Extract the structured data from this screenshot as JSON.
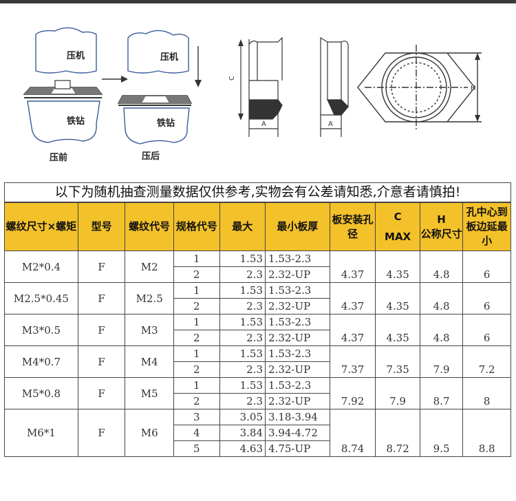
{
  "diagram": {
    "press_label_1": "压机",
    "drill_label_1": "铁钻",
    "before_label": "压前",
    "press_label_2": "压机",
    "drill_label_2": "铁钻",
    "after_label": "压后",
    "dim_c": "C",
    "dim_a_1": "A",
    "dim_a_2": "A",
    "dim_h": "H"
  },
  "note": "以下为随机抽查测量数据仅供参考,实物会有公差请知悉,介意者请慎拍!",
  "table": {
    "headers": {
      "thread_size": "螺纹尺寸×螺矩",
      "model": "型号",
      "thread_code": "螺纹代号",
      "spec_code": "规格代号",
      "max": "最大",
      "min_thickness": "最小板厚",
      "hole_dia": "板安装孔径",
      "c_label": "C",
      "c_sub": "MAX",
      "h_label": "H",
      "h_sub": "公称尺寸",
      "edge": "孔中心到板边延最小"
    },
    "groups": [
      {
        "size": "M2*0.4",
        "model": "F",
        "code": "M2",
        "hole": "4.37",
        "c": "4.35",
        "h": "4.8",
        "edge": "6",
        "rows": [
          {
            "spec": "1",
            "max": "1.53",
            "thick": "1.53-2.3"
          },
          {
            "spec": "2",
            "max": "2.3",
            "thick": "2.32-UP"
          }
        ]
      },
      {
        "size": "M2.5*0.45",
        "model": "F",
        "code": "M2.5",
        "hole": "4.37",
        "c": "4.35",
        "h": "4.8",
        "edge": "6",
        "rows": [
          {
            "spec": "1",
            "max": "1.53",
            "thick": "1.53-2.3"
          },
          {
            "spec": "2",
            "max": "2.3",
            "thick": "2.32-UP"
          }
        ]
      },
      {
        "size": "M3*0.5",
        "model": "F",
        "code": "M3",
        "hole": "4.37",
        "c": "4.35",
        "h": "4.8",
        "edge": "6",
        "rows": [
          {
            "spec": "1",
            "max": "1.53",
            "thick": "1.53-2.3"
          },
          {
            "spec": "2",
            "max": "2.3",
            "thick": "2.32-UP"
          }
        ]
      },
      {
        "size": "M4*0.7",
        "model": "F",
        "code": "M4",
        "hole": "7.37",
        "c": "7.35",
        "h": "7.9",
        "edge": "7.2",
        "rows": [
          {
            "spec": "1",
            "max": "1.53",
            "thick": "1.53-2.3"
          },
          {
            "spec": "2",
            "max": "2.3",
            "thick": "2.32-UP"
          }
        ]
      },
      {
        "size": "M5*0.8",
        "model": "F",
        "code": "M5",
        "hole": "7.92",
        "c": "7.9",
        "h": "8.7",
        "edge": "8",
        "rows": [
          {
            "spec": "1",
            "max": "1.53",
            "thick": "1.53-2.3"
          },
          {
            "spec": "2",
            "max": "2.3",
            "thick": "2.32-UP"
          }
        ]
      },
      {
        "size": "M6*1",
        "model": "F",
        "code": "M6",
        "hole": "8.74",
        "c": "8.72",
        "h": "9.5",
        "edge": "8.8",
        "rows": [
          {
            "spec": "3",
            "max": "3.05",
            "thick": "3.18-3.94"
          },
          {
            "spec": "4",
            "max": "3.84",
            "thick": "3.94-4.72"
          },
          {
            "spec": "5",
            "max": "4.63",
            "thick": "4.75-UP"
          }
        ]
      }
    ]
  },
  "colors": {
    "header_bg": "#f3c12a",
    "diagram_line": "#3a5a9a",
    "hatch": "#333333"
  }
}
